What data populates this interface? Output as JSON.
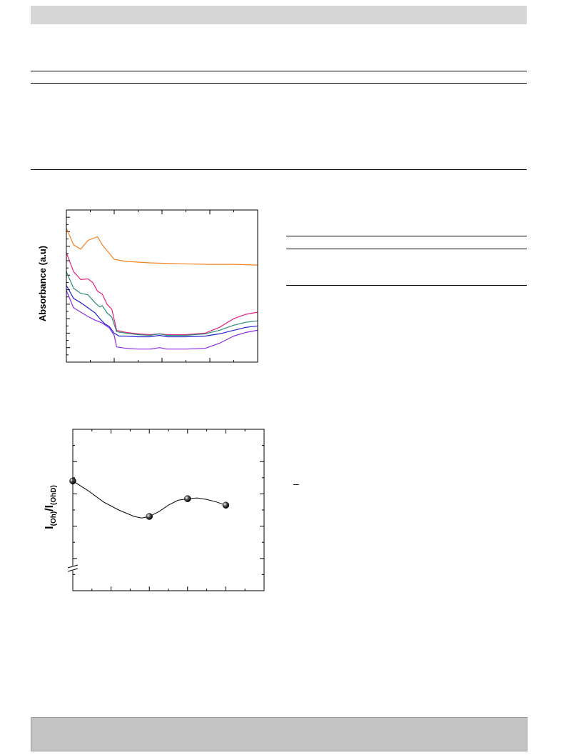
{
  "page": {
    "minus_glyph": "–"
  },
  "colors": {
    "header_band": "#d6d6d6",
    "footer_band": "#c3c3c3",
    "rule": "#000000"
  },
  "chart_data": [
    {
      "type": "line",
      "ylabel": "Absorbance (a.u)",
      "xlim": [
        0,
        8
      ],
      "ylim": [
        0,
        21
      ],
      "grid": false,
      "series": [
        {
          "color": "#f5821f",
          "points": [
            [
              0,
              18.5
            ],
            [
              0.3,
              16.2
            ],
            [
              0.6,
              15.6
            ],
            [
              0.9,
              16.8
            ],
            [
              1.3,
              17.3
            ],
            [
              1.5,
              16.2
            ],
            [
              1.8,
              15.0
            ],
            [
              2.0,
              14.2
            ],
            [
              2.5,
              13.9
            ],
            [
              3.5,
              13.7
            ],
            [
              4.5,
              13.6
            ],
            [
              6.0,
              13.5
            ],
            [
              7.0,
              13.5
            ],
            [
              8.0,
              13.4
            ]
          ]
        },
        {
          "color": "#e6217f",
          "points": [
            [
              0,
              15.1
            ],
            [
              0.3,
              12.5
            ],
            [
              0.6,
              11.4
            ],
            [
              0.9,
              11.5
            ],
            [
              1.1,
              11.0
            ],
            [
              1.3,
              9.8
            ],
            [
              1.5,
              9.4
            ],
            [
              1.7,
              8.0
            ],
            [
              1.9,
              7.3
            ],
            [
              2.1,
              4.4
            ],
            [
              2.5,
              4.1
            ],
            [
              3.0,
              3.9
            ],
            [
              3.5,
              3.8
            ],
            [
              3.9,
              3.9
            ],
            [
              4.2,
              3.8
            ],
            [
              5.0,
              3.8
            ],
            [
              5.8,
              4.0
            ],
            [
              6.4,
              4.8
            ],
            [
              7.0,
              6.0
            ],
            [
              7.5,
              6.6
            ],
            [
              8.0,
              6.9
            ]
          ]
        },
        {
          "color": "#2e8b76",
          "points": [
            [
              0,
              12.5
            ],
            [
              0.3,
              10.2
            ],
            [
              0.6,
              9.5
            ],
            [
              0.9,
              9.3
            ],
            [
              1.2,
              8.2
            ],
            [
              1.4,
              7.6
            ],
            [
              1.5,
              7.8
            ],
            [
              1.7,
              6.8
            ],
            [
              1.9,
              6.2
            ],
            [
              2.1,
              4.2
            ],
            [
              2.5,
              4.0
            ],
            [
              3.0,
              3.8
            ],
            [
              3.5,
              3.7
            ],
            [
              3.9,
              3.9
            ],
            [
              4.2,
              3.7
            ],
            [
              5.0,
              3.7
            ],
            [
              5.8,
              3.9
            ],
            [
              6.4,
              4.4
            ],
            [
              7.0,
              5.1
            ],
            [
              7.5,
              5.5
            ],
            [
              8.0,
              5.7
            ]
          ]
        },
        {
          "color": "#1f1fd0",
          "points": [
            [
              0,
              10.6
            ],
            [
              0.3,
              8.8
            ],
            [
              0.6,
              8.2
            ],
            [
              0.9,
              7.5
            ],
            [
              1.2,
              6.8
            ],
            [
              1.4,
              6.0
            ],
            [
              1.6,
              5.3
            ],
            [
              1.8,
              4.9
            ],
            [
              2.0,
              4.0
            ],
            [
              2.2,
              3.6
            ],
            [
              2.5,
              3.6
            ],
            [
              3.0,
              3.5
            ],
            [
              3.5,
              3.5
            ],
            [
              3.9,
              3.7
            ],
            [
              4.2,
              3.5
            ],
            [
              5.0,
              3.5
            ],
            [
              5.8,
              3.6
            ],
            [
              6.4,
              3.9
            ],
            [
              7.0,
              4.4
            ],
            [
              7.5,
              4.8
            ],
            [
              8.0,
              5.0
            ]
          ]
        },
        {
          "color": "#8b2be2",
          "points": [
            [
              0,
              9.9
            ],
            [
              0.3,
              7.5
            ],
            [
              0.6,
              6.9
            ],
            [
              0.9,
              6.3
            ],
            [
              1.2,
              5.8
            ],
            [
              1.5,
              5.4
            ],
            [
              1.8,
              4.7
            ],
            [
              2.0,
              3.7
            ],
            [
              2.1,
              2.1
            ],
            [
              2.5,
              1.9
            ],
            [
              3.0,
              1.8
            ],
            [
              3.5,
              1.8
            ],
            [
              3.9,
              2.0
            ],
            [
              4.2,
              1.8
            ],
            [
              5.0,
              1.8
            ],
            [
              5.8,
              1.9
            ],
            [
              6.4,
              2.6
            ],
            [
              7.0,
              3.6
            ],
            [
              7.5,
              4.1
            ],
            [
              8.0,
              4.4
            ]
          ]
        }
      ]
    },
    {
      "type": "scatter",
      "ylabel_main": "I",
      "ylabel_sub1": "(Oh)",
      "ylabel_mid": "/I",
      "ylabel_sub2": "(OhD)",
      "xlim": [
        0,
        10
      ],
      "ylim": [
        0,
        10
      ],
      "grid": false,
      "axis_break": true,
      "points": [
        [
          0,
          6.8
        ],
        [
          4,
          4.6
        ],
        [
          6,
          5.7
        ],
        [
          8,
          5.3
        ]
      ],
      "fit_curve": [
        [
          0,
          6.8
        ],
        [
          0.8,
          6.2
        ],
        [
          1.6,
          5.5
        ],
        [
          2.4,
          5.0
        ],
        [
          3.2,
          4.6
        ],
        [
          3.6,
          4.5
        ],
        [
          4,
          4.6
        ],
        [
          4.5,
          4.9
        ],
        [
          5,
          5.3
        ],
        [
          5.5,
          5.6
        ],
        [
          6,
          5.7
        ],
        [
          6.5,
          5.75
        ],
        [
          7,
          5.65
        ],
        [
          7.5,
          5.5
        ],
        [
          8,
          5.3
        ]
      ]
    }
  ]
}
